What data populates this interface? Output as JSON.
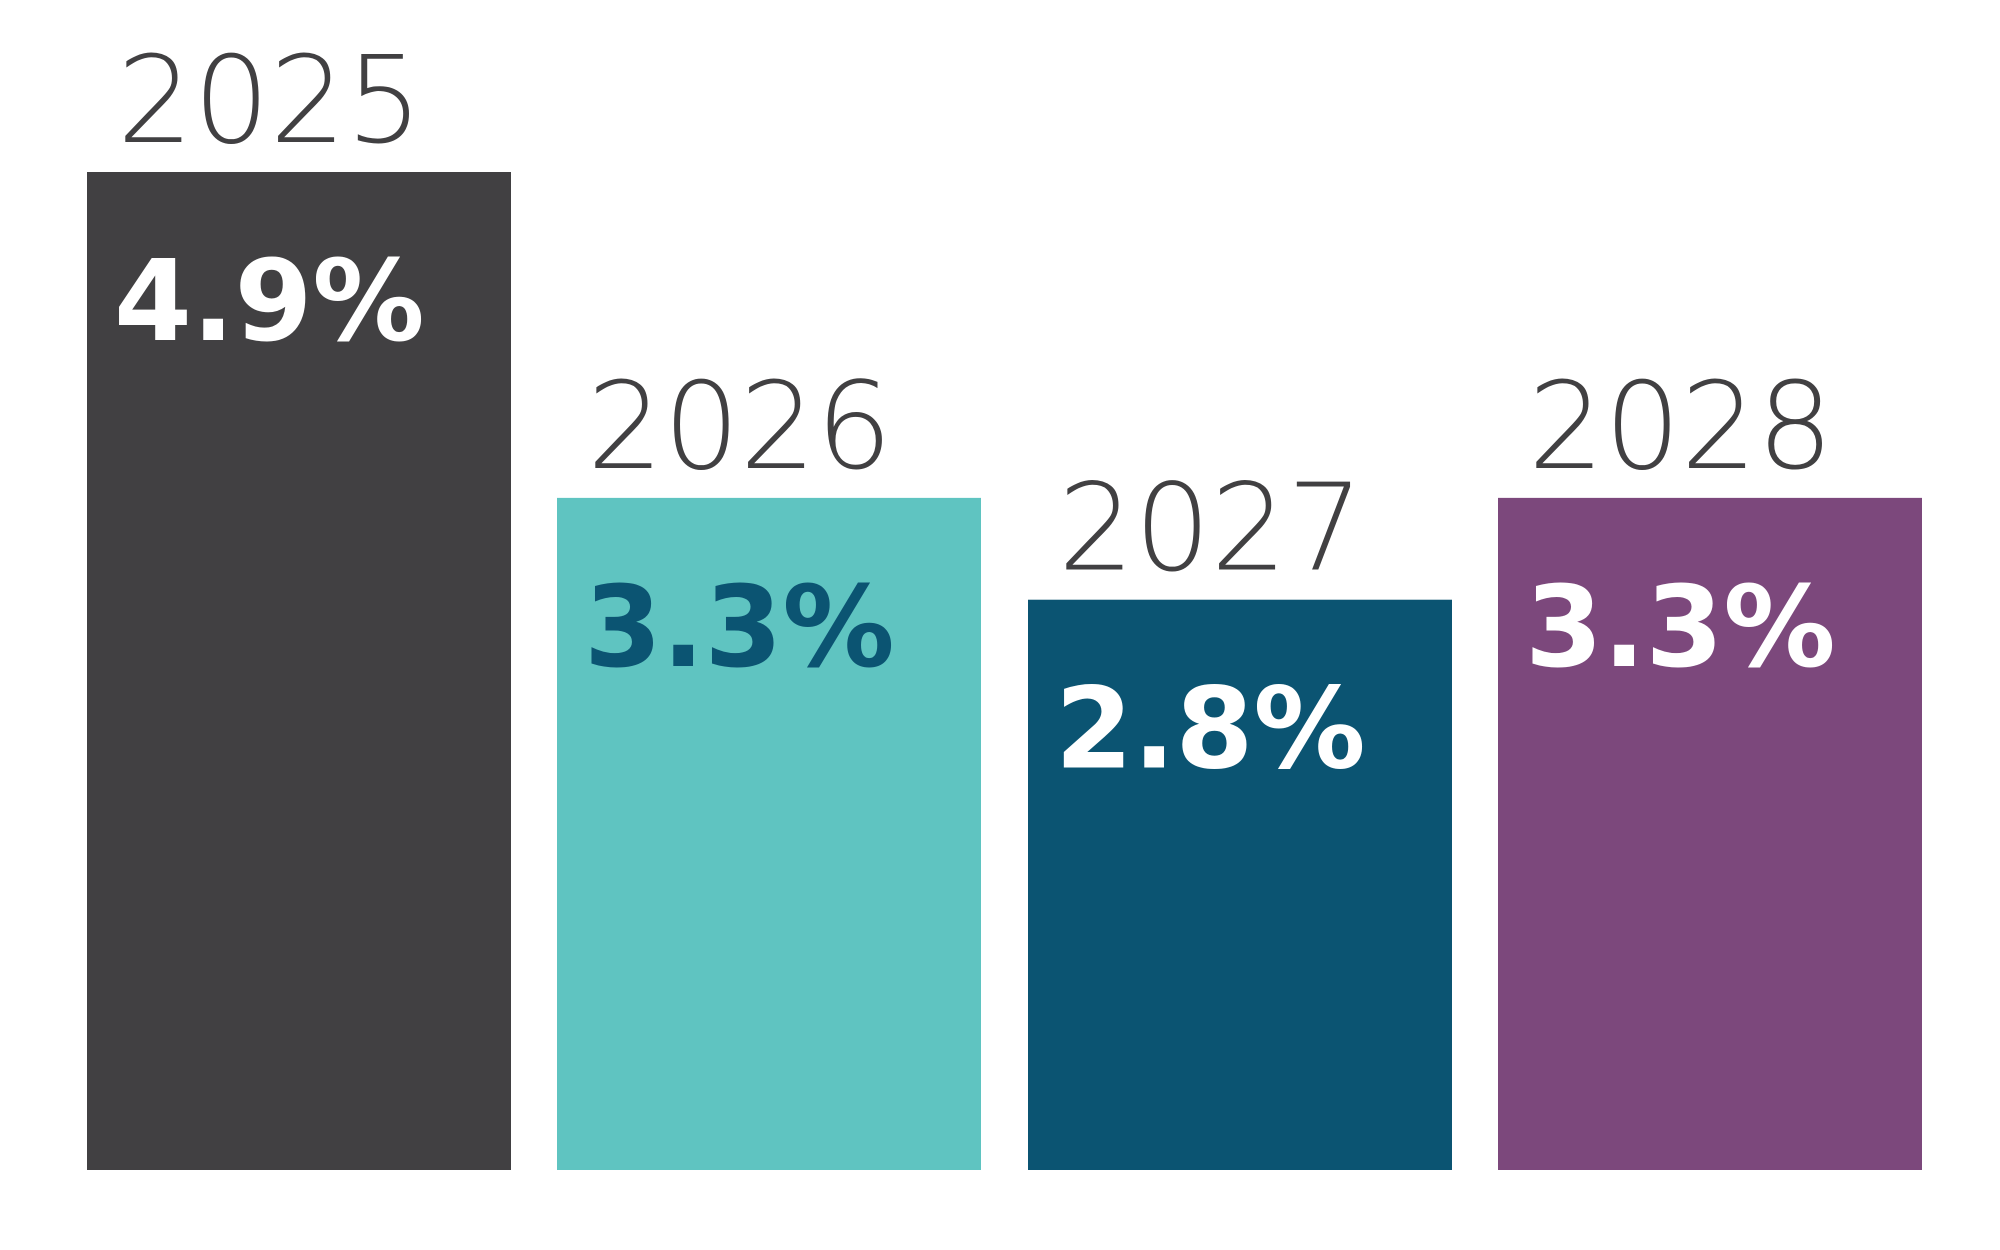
{
  "chart_data": {
    "type": "bar",
    "categories": [
      "2025",
      "2026",
      "2027",
      "2028"
    ],
    "values": [
      4.9,
      3.3,
      2.8,
      3.3
    ],
    "data_labels": [
      "4.9%",
      "3.3%",
      "2.8%",
      "3.3%"
    ],
    "unit": "%",
    "title": "",
    "xlabel": "",
    "ylabel": "",
    "ylim": [
      0,
      4.9
    ],
    "grid": false,
    "legend": "none",
    "bar_colors": [
      "#414042",
      "#5fc4c1",
      "#0b5472",
      "#7c487c"
    ],
    "label_colors": [
      "#ffffff",
      "#0b5472",
      "#ffffff",
      "#ffffff"
    ],
    "year_label_color": "#414042",
    "background": "#ffffff"
  }
}
